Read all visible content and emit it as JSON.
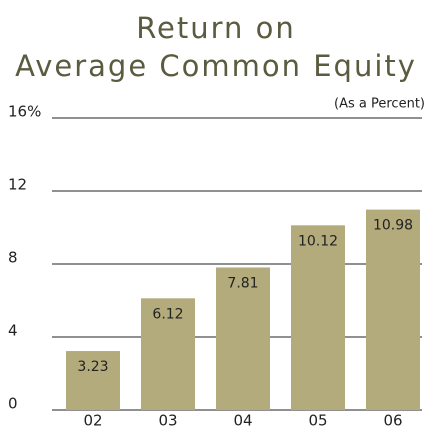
{
  "chart_data": {
    "type": "bar",
    "title": [
      "Return on",
      "Average Common Equity"
    ],
    "subtitle": "(As a Percent)",
    "categories": [
      "02",
      "03",
      "04",
      "05",
      "06"
    ],
    "values": [
      3.23,
      6.12,
      7.81,
      10.12,
      10.98
    ],
    "color": "#b3ab7c",
    "ylim": [
      0,
      16
    ],
    "yticks": [
      0,
      4,
      8,
      12,
      {
        "value": 16,
        "label": "16%"
      }
    ],
    "grid": true
  }
}
